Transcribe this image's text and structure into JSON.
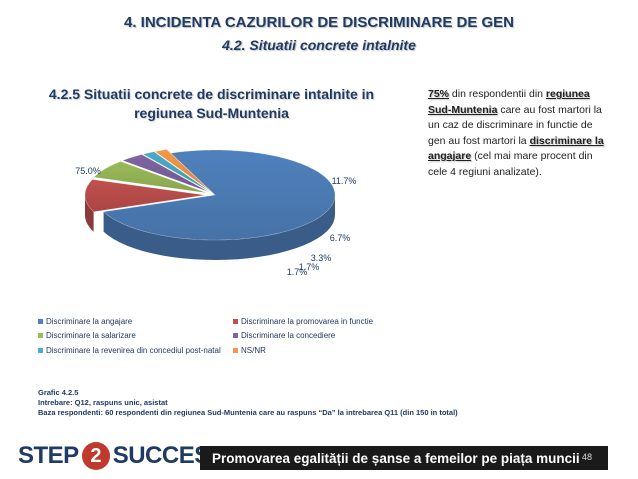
{
  "header": {
    "title": "4. INCIDENTA CAZURILOR DE DISCRIMINARE DE GEN",
    "subtitle": "4.2. Situatii concrete intalnite"
  },
  "chart_data": {
    "type": "pie",
    "title": "4.2.5 Situatii concrete de discriminare intalnite in regiunea Sud-Muntenia",
    "categories": [
      "Discriminare la angajare",
      "Discriminare la promovarea in functie",
      "Discriminare la salarizare",
      "Discriminare la concediere",
      "Discriminare la revenirea din concediul post-natal",
      "NS/NR"
    ],
    "values": [
      75.0,
      11.7,
      6.7,
      3.3,
      1.7,
      1.7
    ],
    "labels": [
      "75.0%",
      "11.7%",
      "6.7%",
      "3.3%",
      "1.7%",
      "1.7%"
    ],
    "colors": [
      "#4f81bd",
      "#c0504d",
      "#9bbb59",
      "#8064a2",
      "#4bacc6",
      "#f79646"
    ],
    "legend_position": "bottom"
  },
  "side_text": {
    "p1": "75%",
    "p2": " din respondentii din ",
    "p3": "regiunea Sud-Muntenia",
    "p4": " care au fost martori la un caz de discriminare in functie de gen au fost martori la ",
    "p5": "discriminare la angajare",
    "p6": " (cel mai mare procent din cele 4 regiuni analizate)."
  },
  "notes": {
    "line1": "Grafic 4.2.5",
    "line2": "Intrebare: Q12, raspuns unic, asistat",
    "line3": "Baza respondenti: 60 respondenti din regiunea Sud-Muntenia care au raspuns “Da” la intrebarea Q11 (din 150 in total)"
  },
  "footer": {
    "logo_left": "STEP",
    "logo_num": "2",
    "logo_right": "SUCCESS",
    "banner": "Promovarea egalității de șanse a femeilor pe piața muncii",
    "page": "48"
  }
}
